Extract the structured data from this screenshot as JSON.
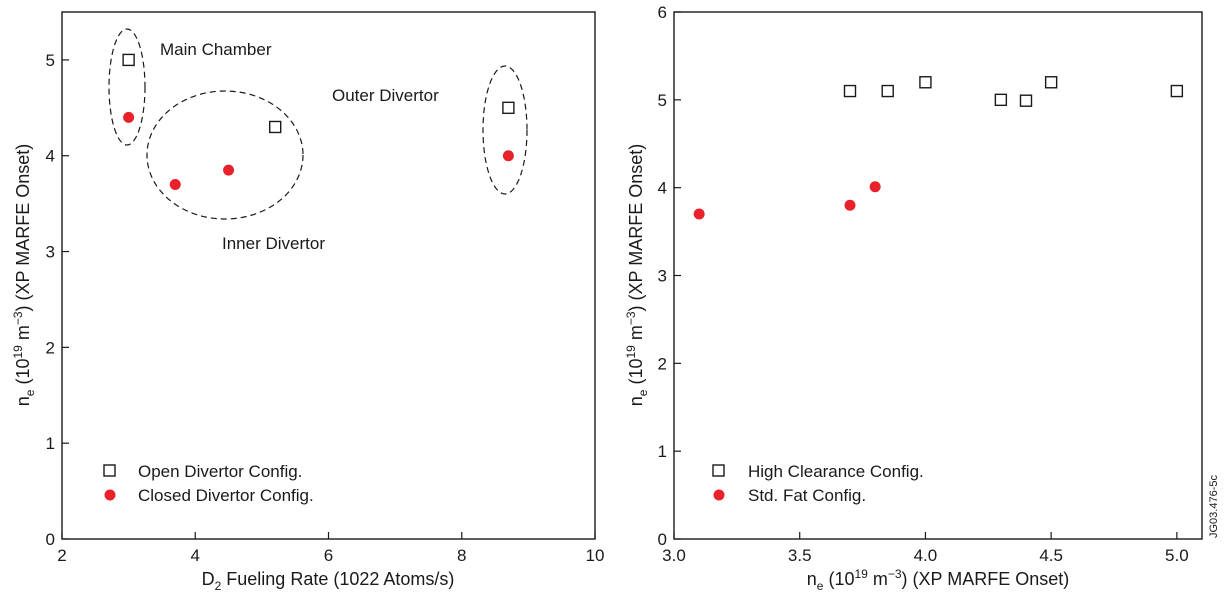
{
  "colors": {
    "open_marker": "#1a1a1a",
    "closed_marker": "#e8212b"
  },
  "side_label": "JG03.476-5c",
  "chart_data": [
    {
      "type": "scatter",
      "xlabel": "D2 Fueling Rate (1022 Atoms/s)",
      "xlabel_main": "D",
      "xlabel_sub": "2",
      "xlabel_rest": " Fueling Rate (1022 Atoms/s)",
      "ylabel": "ne (1019 m−3) (XP MARFE Onset)",
      "ylabel_parts": {
        "n": "n",
        "sub": "e",
        "pre": " (10",
        "sup1": "19",
        "mid": " m",
        "sup2": "−3",
        "post": ") (XP MARFE Onset)"
      },
      "xlim": [
        2,
        10
      ],
      "ylim": [
        0,
        5.5
      ],
      "xticks": [
        2,
        4,
        6,
        8,
        10
      ],
      "xtick_labels": [
        "2",
        "4",
        "6",
        "8",
        "10"
      ],
      "yticks": [
        0,
        1,
        2,
        3,
        4,
        5
      ],
      "ytick_labels": [
        "0",
        "1",
        "2",
        "3",
        "4",
        "5"
      ],
      "legend_position": "bottom-left",
      "series": [
        {
          "name": "Open Divertor Config.",
          "marker": "square",
          "x": [
            3.0,
            5.2,
            8.7
          ],
          "y": [
            5.0,
            4.3,
            4.5
          ]
        },
        {
          "name": "Closed Divertor Config.",
          "marker": "circle",
          "x": [
            3.0,
            3.7,
            4.5,
            8.7
          ],
          "y": [
            4.4,
            3.7,
            3.85,
            4.0
          ]
        }
      ],
      "annotations": [
        "Main Chamber",
        "Outer Divertor",
        "Inner Divertor"
      ]
    },
    {
      "type": "scatter",
      "xlabel": "ne (1019 m−3) (XP MARFE Onset)",
      "xlabel_parts": {
        "n": "n",
        "sub": "e",
        "pre": " (10",
        "sup1": "19",
        "mid": " m",
        "sup2": "−3",
        "post": ") (XP MARFE Onset)"
      },
      "ylabel": "ne (1019 m−3) (XP MARFE Onset)",
      "ylabel_parts": {
        "n": "n",
        "sub": "e",
        "pre": " (10",
        "sup1": "19",
        "mid": " m",
        "sup2": "−3",
        "post": ") (XP MARFE Onset)"
      },
      "xlim": [
        3.0,
        5.1
      ],
      "ylim": [
        0,
        6
      ],
      "xticks": [
        3.0,
        3.5,
        4.0,
        4.5,
        5.0
      ],
      "xtick_labels": [
        "3.0",
        "3.5",
        "4.0",
        "4.5",
        "5.0"
      ],
      "yticks": [
        0,
        1,
        2,
        3,
        4,
        5,
        6
      ],
      "ytick_labels": [
        "0",
        "1",
        "2",
        "3",
        "4",
        "5",
        "6"
      ],
      "legend_position": "bottom-left",
      "series": [
        {
          "name": "High Clearance Config.",
          "marker": "square",
          "x": [
            3.7,
            3.85,
            4.0,
            4.3,
            4.4,
            4.5,
            5.0
          ],
          "y": [
            5.1,
            5.1,
            5.2,
            5.0,
            4.99,
            5.2,
            5.1
          ]
        },
        {
          "name": "Std. Fat Config.",
          "marker": "circle",
          "x": [
            3.1,
            3.7,
            3.8
          ],
          "y": [
            3.7,
            3.8,
            4.01
          ]
        }
      ]
    }
  ]
}
